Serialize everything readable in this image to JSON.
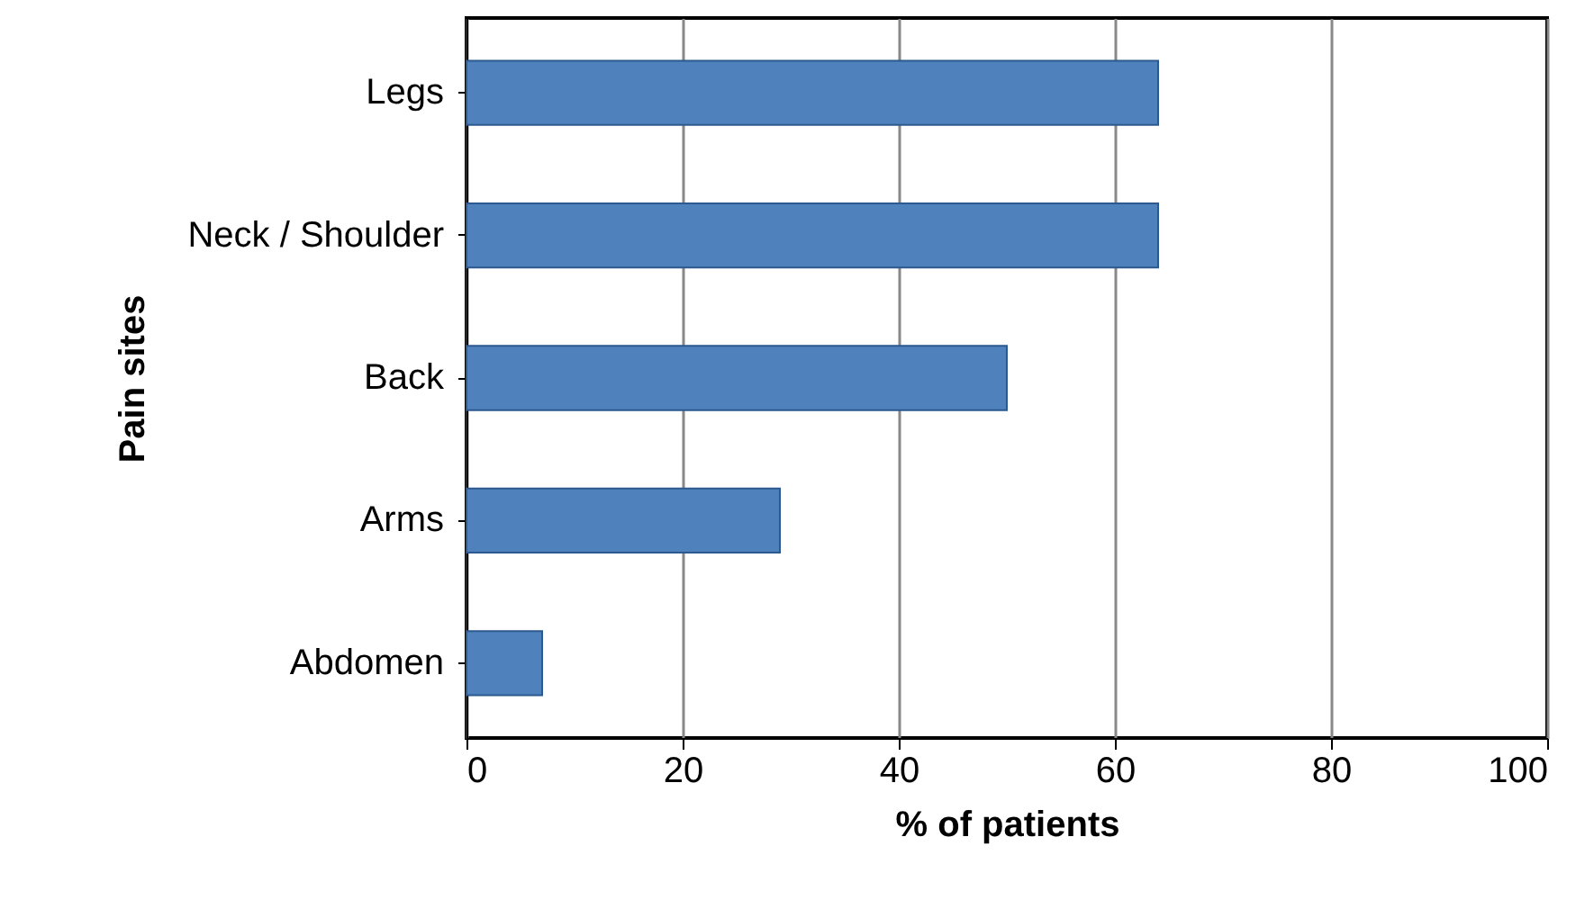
{
  "chart_data": {
    "type": "bar",
    "orientation": "horizontal",
    "xlabel": "% of patients",
    "ylabel": "Pain sites",
    "categories": [
      "Legs",
      "Neck / Shoulder",
      "Back",
      "Arms",
      "Abdomen"
    ],
    "values": [
      64,
      64,
      50,
      29,
      7
    ],
    "color": "#4f81bd",
    "xlim": [
      0,
      100
    ],
    "xticks": [
      0,
      20,
      40,
      60,
      80,
      100
    ],
    "grid": "x"
  }
}
